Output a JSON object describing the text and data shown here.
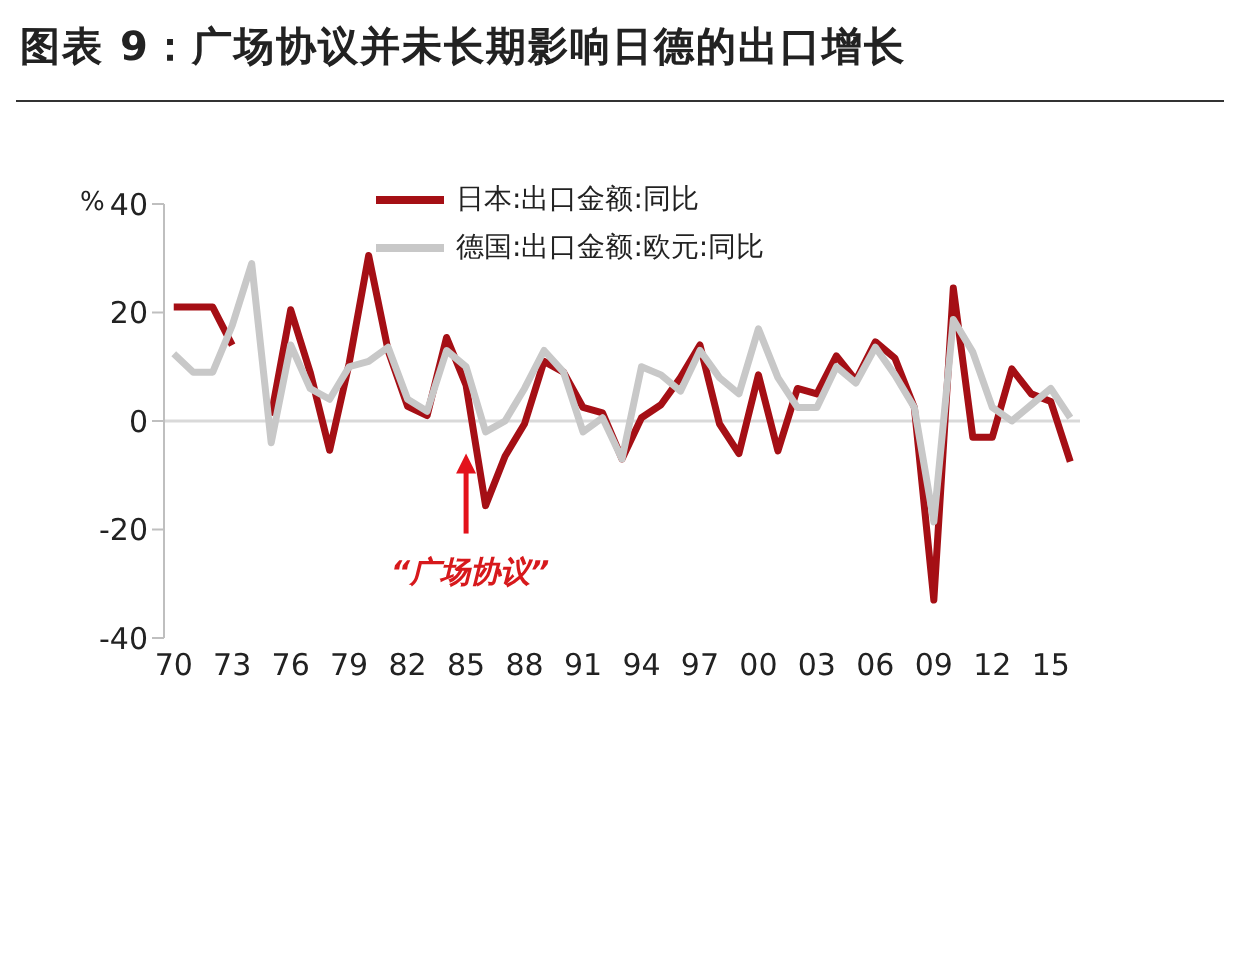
{
  "chart_data": {
    "type": "line",
    "title": "图表 9：广场协议并未长期影响日德的出口增长",
    "ylabel": "%",
    "x": [
      1970,
      1971,
      1972,
      1973,
      1974,
      1975,
      1976,
      1977,
      1978,
      1979,
      1980,
      1981,
      1982,
      1983,
      1984,
      1985,
      1986,
      1987,
      1988,
      1989,
      1990,
      1991,
      1992,
      1993,
      1994,
      1995,
      1996,
      1997,
      1998,
      1999,
      2000,
      2001,
      2002,
      2003,
      2004,
      2005,
      2006,
      2007,
      2008,
      2009,
      2010,
      2011,
      2012,
      2013,
      2014,
      2015,
      2016
    ],
    "series": [
      {
        "name": "日本:出口金额:同比",
        "color": "#a50f15",
        "values": [
          21,
          21,
          21,
          14,
          null,
          1,
          20.5,
          9,
          -5.4,
          10.6,
          30.5,
          13,
          2.7,
          1,
          15.4,
          6.6,
          -15.6,
          -6.5,
          -0.5,
          11,
          9,
          2.5,
          1.5,
          -7,
          0.6,
          3,
          8,
          14,
          -0.5,
          -6,
          8.5,
          -5.5,
          6,
          5,
          12,
          7.5,
          14.6,
          11.6,
          2.5,
          -33,
          24.5,
          -3,
          -3,
          9.6,
          5,
          3.6,
          -7.5
        ]
      },
      {
        "name": "德国:出口金额:欧元:同比",
        "color": "#c8c8c8",
        "values": [
          12.4,
          9,
          9,
          17.6,
          29,
          -4,
          14,
          6,
          4,
          10,
          11,
          13.6,
          4,
          1.8,
          13,
          10,
          -2,
          0,
          6,
          13,
          9,
          -2,
          0.6,
          -7,
          10,
          8.5,
          5.5,
          13,
          8,
          5,
          17,
          8,
          2.5,
          2.5,
          10,
          7,
          13.6,
          8.5,
          2.5,
          -18.6,
          18.7,
          12.7,
          2.5,
          0,
          3,
          6,
          0.6
        ]
      }
    ],
    "xlim": [
      1969.5,
      2016.5
    ],
    "xticks": [
      {
        "value": 1970,
        "label": "70"
      },
      {
        "value": 1973,
        "label": "73"
      },
      {
        "value": 1976,
        "label": "76"
      },
      {
        "value": 1979,
        "label": "79"
      },
      {
        "value": 1982,
        "label": "82"
      },
      {
        "value": 1985,
        "label": "85"
      },
      {
        "value": 1988,
        "label": "88"
      },
      {
        "value": 1991,
        "label": "91"
      },
      {
        "value": 1994,
        "label": "94"
      },
      {
        "value": 1997,
        "label": "97"
      },
      {
        "value": 2000,
        "label": "00"
      },
      {
        "value": 2003,
        "label": "03"
      },
      {
        "value": 2006,
        "label": "06"
      },
      {
        "value": 2009,
        "label": "09"
      },
      {
        "value": 2012,
        "label": "12"
      },
      {
        "value": 2015,
        "label": "15"
      }
    ],
    "ylim": [
      -40,
      40
    ],
    "yticks": [
      -40,
      -20,
      0,
      20,
      40
    ],
    "ref_lines": [
      {
        "axis": "y",
        "value": 0,
        "color": "#d9d9d9"
      }
    ],
    "annotations": [
      {
        "text": "“广场协议”",
        "x": 1985,
        "y": -6
      }
    ],
    "grid": false,
    "legend": "top",
    "marker": "none",
    "line_style": "solid"
  }
}
